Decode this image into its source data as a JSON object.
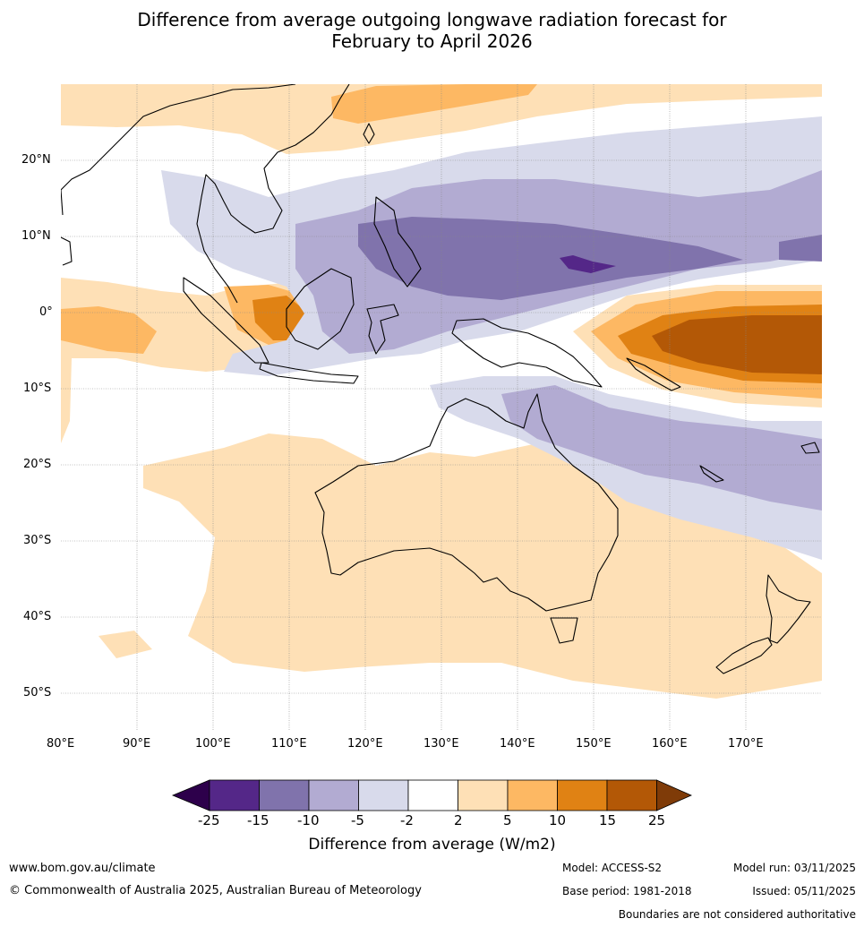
{
  "title": {
    "line1": "Difference from average outgoing longwave radiation forecast for",
    "line2": "February to April 2026"
  },
  "map": {
    "extent": {
      "lon_min": 80,
      "lon_max": 180,
      "lat_min": -55,
      "lat_max": 30
    },
    "lon_labels": [
      "80°E",
      "90°E",
      "100°E",
      "110°E",
      "120°E",
      "130°E",
      "140°E",
      "150°E",
      "160°E",
      "170°E"
    ],
    "lat_labels": [
      "20°N",
      "10°N",
      "0°",
      "10°S",
      "20°S",
      "30°S",
      "40°S",
      "50°S"
    ],
    "regions": {
      "enhanced_convection": "Maritime Continent, Philippines to Central Pacific (negative anomaly)",
      "suppressed_convection": "Equatorial Western Pacific east of 150°E, Australia and Southern Ocean (positive anomaly)"
    }
  },
  "colorbar": {
    "ticks": [
      "-25",
      "-15",
      "-10",
      "-5",
      "-2",
      "2",
      "5",
      "10",
      "15",
      "25"
    ],
    "colors": [
      "#2d004b",
      "#542788",
      "#8073ac",
      "#b2abd2",
      "#d8daeb",
      "#ffffff",
      "#fee0b6",
      "#fdb863",
      "#e08214",
      "#b35806",
      "#7f3b08"
    ],
    "label": "Difference from average (W/m2)"
  },
  "footer": {
    "url": "www.bom.gov.au/climate",
    "copyright": "© Commonwealth of Australia 2025, Australian Bureau of Meteorology",
    "model": "Model: ACCESS-S2",
    "base_period": "Base period: 1981-2018",
    "model_run": "Model run: 03/11/2025",
    "issued": "Issued: 05/11/2025",
    "disclaimer": "Boundaries are not considered authoritative"
  }
}
